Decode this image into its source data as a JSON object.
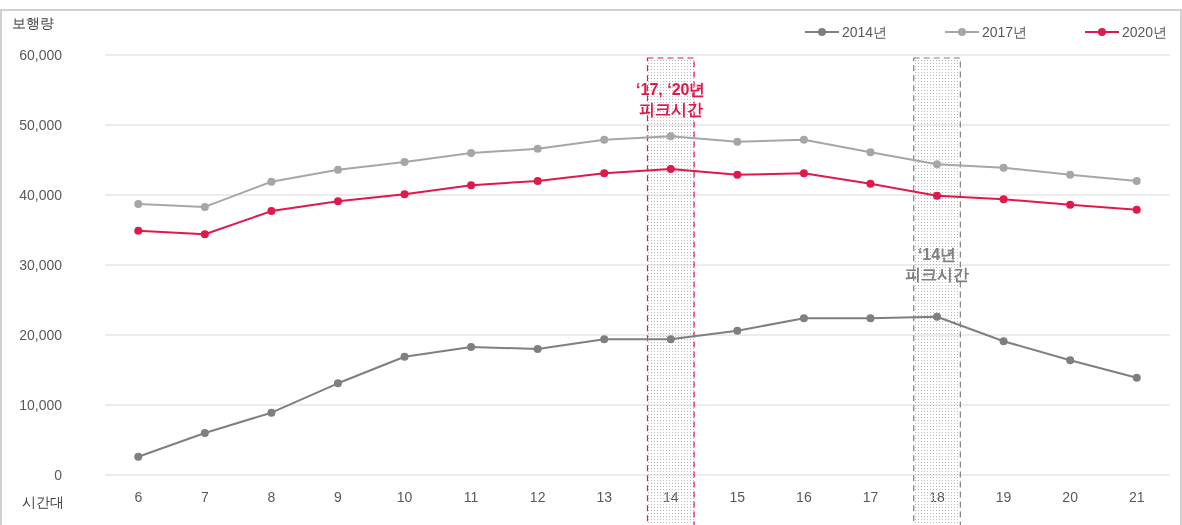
{
  "chart_data": {
    "type": "line",
    "ylabel": "보행량",
    "xlabel": "시간대",
    "x": [
      6,
      7,
      8,
      9,
      10,
      11,
      12,
      13,
      14,
      15,
      16,
      17,
      18,
      19,
      20,
      21
    ],
    "xlim": [
      5.5,
      21.5
    ],
    "xticks": [
      6,
      7,
      8,
      9,
      10,
      11,
      12,
      13,
      14,
      15,
      16,
      17,
      18,
      19,
      20,
      21
    ],
    "ylim": [
      0,
      60000
    ],
    "yticks": [
      {
        "value": 0,
        "label": "0"
      },
      {
        "value": 10000,
        "label": "10,000"
      },
      {
        "value": 20000,
        "label": "20,000"
      },
      {
        "value": 30000,
        "label": "30,000"
      },
      {
        "value": 40000,
        "label": "40,000"
      },
      {
        "value": 50000,
        "label": "50,000"
      },
      {
        "value": 60000,
        "label": "60,000"
      }
    ],
    "grid": "y",
    "legend": "top right",
    "marker": "circle",
    "line_style": "solid",
    "series": [
      {
        "name": "2014년",
        "color": "#7f7f7f",
        "values": [
          2600,
          6000,
          8900,
          13100,
          16900,
          18300,
          18000,
          19400,
          19400,
          20600,
          22400,
          22400,
          22600,
          19100,
          16400,
          13900
        ]
      },
      {
        "name": "2017년",
        "color": "#a6a6a6",
        "values": [
          38700,
          38300,
          41900,
          43600,
          44700,
          46000,
          46600,
          47900,
          48400,
          47600,
          47900,
          46100,
          44400,
          43900,
          42900,
          42000
        ]
      },
      {
        "name": "2020년",
        "color": "#e0194b",
        "values": [
          34900,
          34400,
          37700,
          39100,
          40100,
          41400,
          42000,
          43100,
          43700,
          42900,
          43100,
          41600,
          39900,
          39400,
          38600,
          37900
        ]
      }
    ],
    "bands": [
      {
        "axis": "x",
        "from": 13.65,
        "to": 14.35,
        "label": "‘17, ‘20년\n피크시간",
        "color": "#e0194b"
      },
      {
        "axis": "x",
        "from": 17.65,
        "to": 18.35,
        "label": "‘14년\n피크시간",
        "color": "#7f7f7f"
      }
    ]
  }
}
